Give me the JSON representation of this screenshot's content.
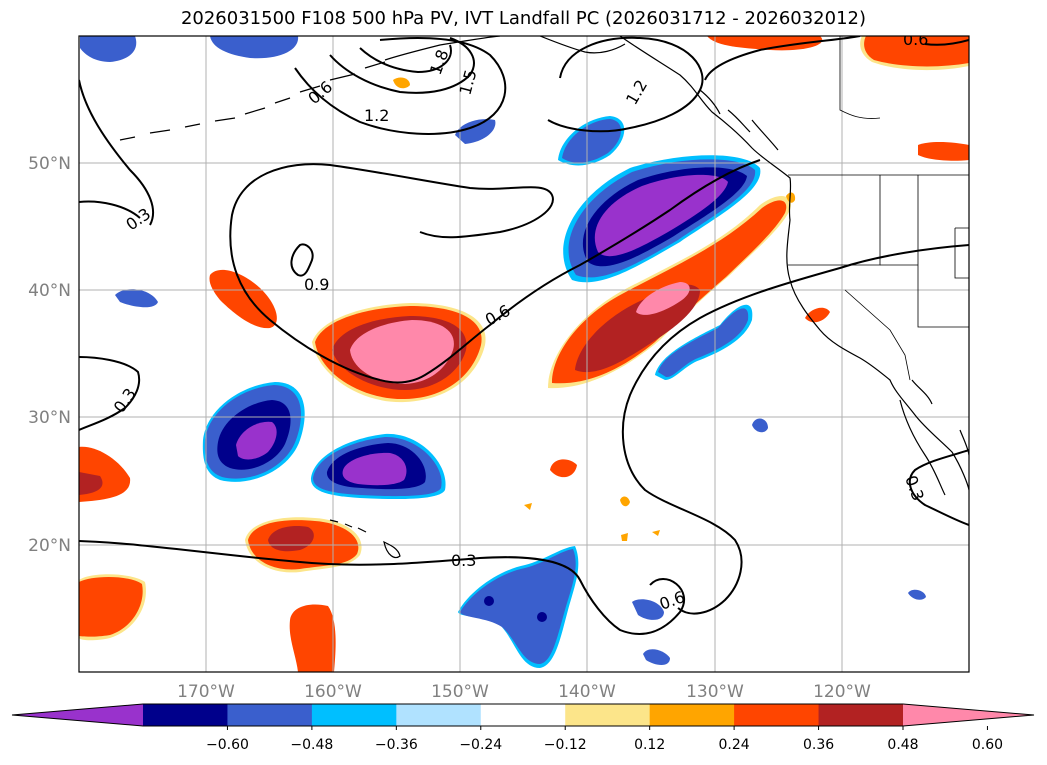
{
  "title": "2026031500 F108 500 hPa PV, IVT Landfall PC (2026031712 - 2026032012)",
  "map": {
    "projection": "plate carree",
    "grid": true,
    "lon_ticks": [
      "170°W",
      "160°W",
      "150°W",
      "140°W",
      "130°W",
      "120°W"
    ],
    "lat_ticks": [
      "50°N",
      "40°N",
      "30°N",
      "20°N"
    ],
    "filled_field": "IVT Landfall PC",
    "contour_field": "500 hPa PV",
    "contour_color": "#000000",
    "contour_labels": [
      "0.3",
      "0.3",
      "0.6",
      "0.6",
      "0.6",
      "0.9",
      "1.2",
      "1.2",
      "1.5",
      "1.8",
      "0.3",
      "0.3",
      "0.6"
    ]
  },
  "colorbar": {
    "ticks": [
      "−0.60",
      "−0.48",
      "−0.36",
      "−0.24",
      "−0.12",
      "0.12",
      "0.24",
      "0.36",
      "0.48",
      "0.60"
    ],
    "colors": [
      "#9932cc",
      "#00008b",
      "#3a5fcd",
      "#00bfff",
      "#b0e2ff",
      "#ffffff",
      "#fce58a",
      "#ffa500",
      "#ff4500",
      "#b22222",
      "#ff88aa"
    ],
    "extend": "both"
  }
}
